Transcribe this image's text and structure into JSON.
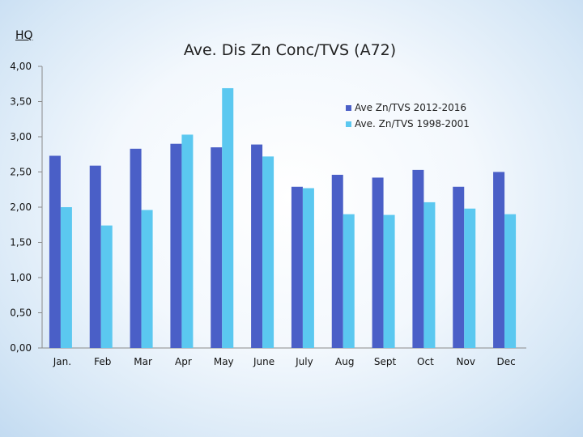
{
  "header": {
    "tag": "HQ"
  },
  "chart_data": {
    "type": "bar",
    "title": "Ave. Dis Zn Conc/TVS (A72)",
    "xlabel": "",
    "ylabel": "",
    "categories": [
      "Jan.",
      "Feb",
      "Mar",
      "Apr",
      "May",
      "June",
      "July",
      "Aug",
      "Sept",
      "Oct",
      "Nov",
      "Dec"
    ],
    "series": [
      {
        "name": "Ave Zn/TVS 2012-2016",
        "color": "#4a5fc7",
        "values": [
          2.73,
          2.59,
          2.83,
          2.9,
          2.85,
          2.89,
          2.29,
          2.46,
          2.42,
          2.53,
          2.29,
          2.5
        ]
      },
      {
        "name": "Ave. Zn/TVS 1998-2001",
        "color": "#5bc8f0",
        "values": [
          2.0,
          1.74,
          1.96,
          3.03,
          3.69,
          2.72,
          2.27,
          1.9,
          1.89,
          2.07,
          1.98,
          1.9
        ]
      }
    ],
    "ylim": [
      0,
      4
    ],
    "yticks": [
      "0,00",
      "0,50",
      "1,00",
      "1,50",
      "2,00",
      "2,50",
      "3,00",
      "3,50",
      "4,00"
    ],
    "ytick_values": [
      0,
      0.5,
      1,
      1.5,
      2,
      2.5,
      3,
      3.5,
      4
    ],
    "grid": false,
    "legend": "top-right"
  }
}
